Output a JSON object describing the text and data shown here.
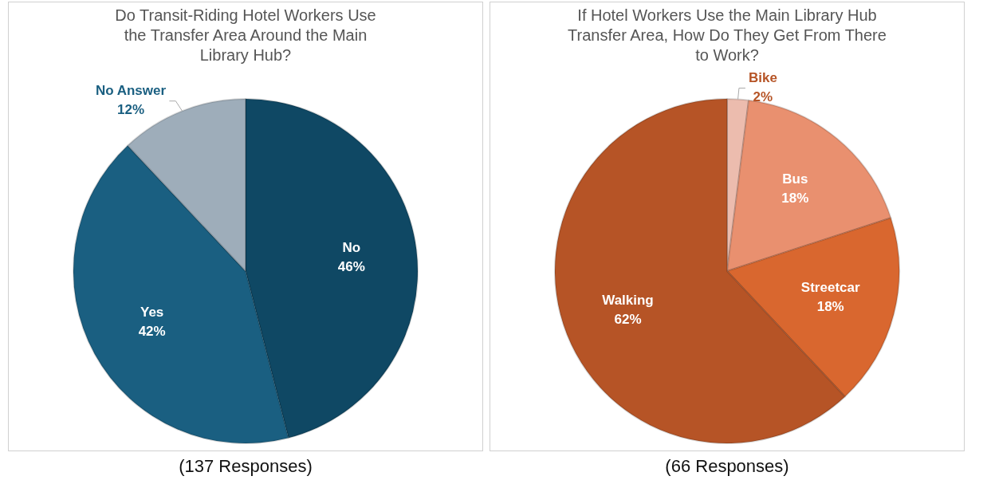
{
  "chart_data": [
    {
      "type": "pie",
      "title": "Do Transit-Riding Hotel Workers Use the Transfer Area Around the Main Library Hub?",
      "categories": [
        "No",
        "Yes",
        "No Answer"
      ],
      "values": [
        46,
        42,
        12
      ],
      "colors": [
        "#0f4864",
        "#1a5f81",
        "#9eadba"
      ],
      "value_labels": [
        "46%",
        "42%",
        "12%"
      ],
      "legend": false,
      "annotations": [
        "(137 Responses)"
      ]
    },
    {
      "type": "pie",
      "title": "If Hotel Workers Use the Main Library Hub Transfer Area, How Do They Get From There to Work?",
      "categories": [
        "Bike",
        "Bus",
        "Streetcar",
        "Walking"
      ],
      "values": [
        2,
        18,
        18,
        62
      ],
      "colors": [
        "#ecbcae",
        "#e9906f",
        "#d9672f",
        "#b65426"
      ],
      "value_labels": [
        "2%",
        "18%",
        "18%",
        "62%"
      ],
      "legend": false,
      "annotations": [
        "(66 Responses)"
      ]
    }
  ]
}
